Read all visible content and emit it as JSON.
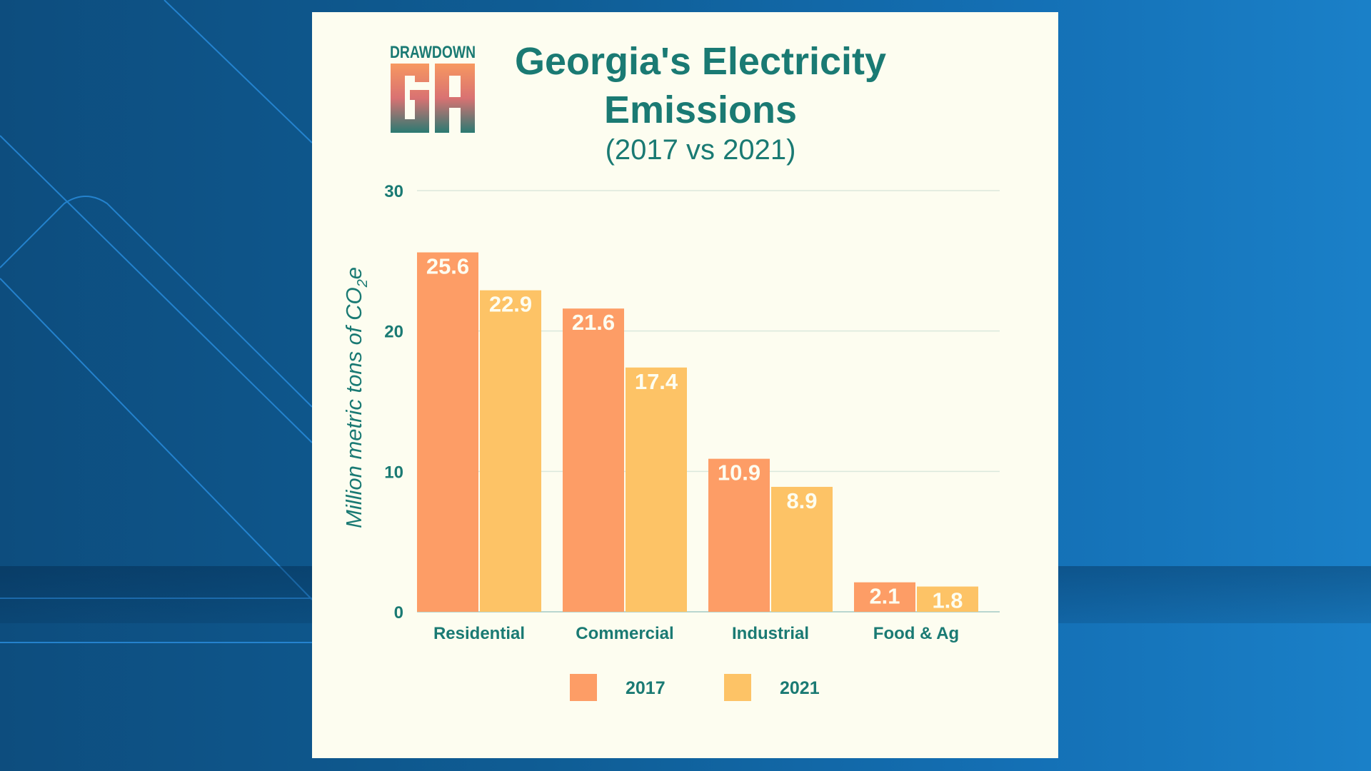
{
  "logo": {
    "text_top": "DRAWDOWN",
    "text_main": "GA"
  },
  "chart_data": {
    "type": "bar",
    "title": "Georgia's Electricity Emissions",
    "subtitle": "(2017 vs 2021)",
    "ylabel": "Million metric tons of CO2e",
    "ylabel_parts": {
      "main": "Million metric tons of CO",
      "sub": "2",
      "end": "e"
    },
    "xlabel": "",
    "ylim": [
      0,
      30
    ],
    "yticks": [
      "0",
      "10",
      "20",
      "30"
    ],
    "grid": true,
    "legend": "bottom",
    "categories": [
      "Residential",
      "Commercial",
      "Industrial",
      "Food & Ag"
    ],
    "series": [
      {
        "name": "2017",
        "values": [
          25.6,
          21.6,
          10.9,
          2.1
        ],
        "color": "#fd9d66"
      },
      {
        "name": "2021",
        "values": [
          22.9,
          17.4,
          8.9,
          1.8
        ],
        "color": "#fdc366"
      }
    ],
    "colors": {
      "text": "#1a7a73",
      "labels": "#fdfdf0"
    }
  }
}
